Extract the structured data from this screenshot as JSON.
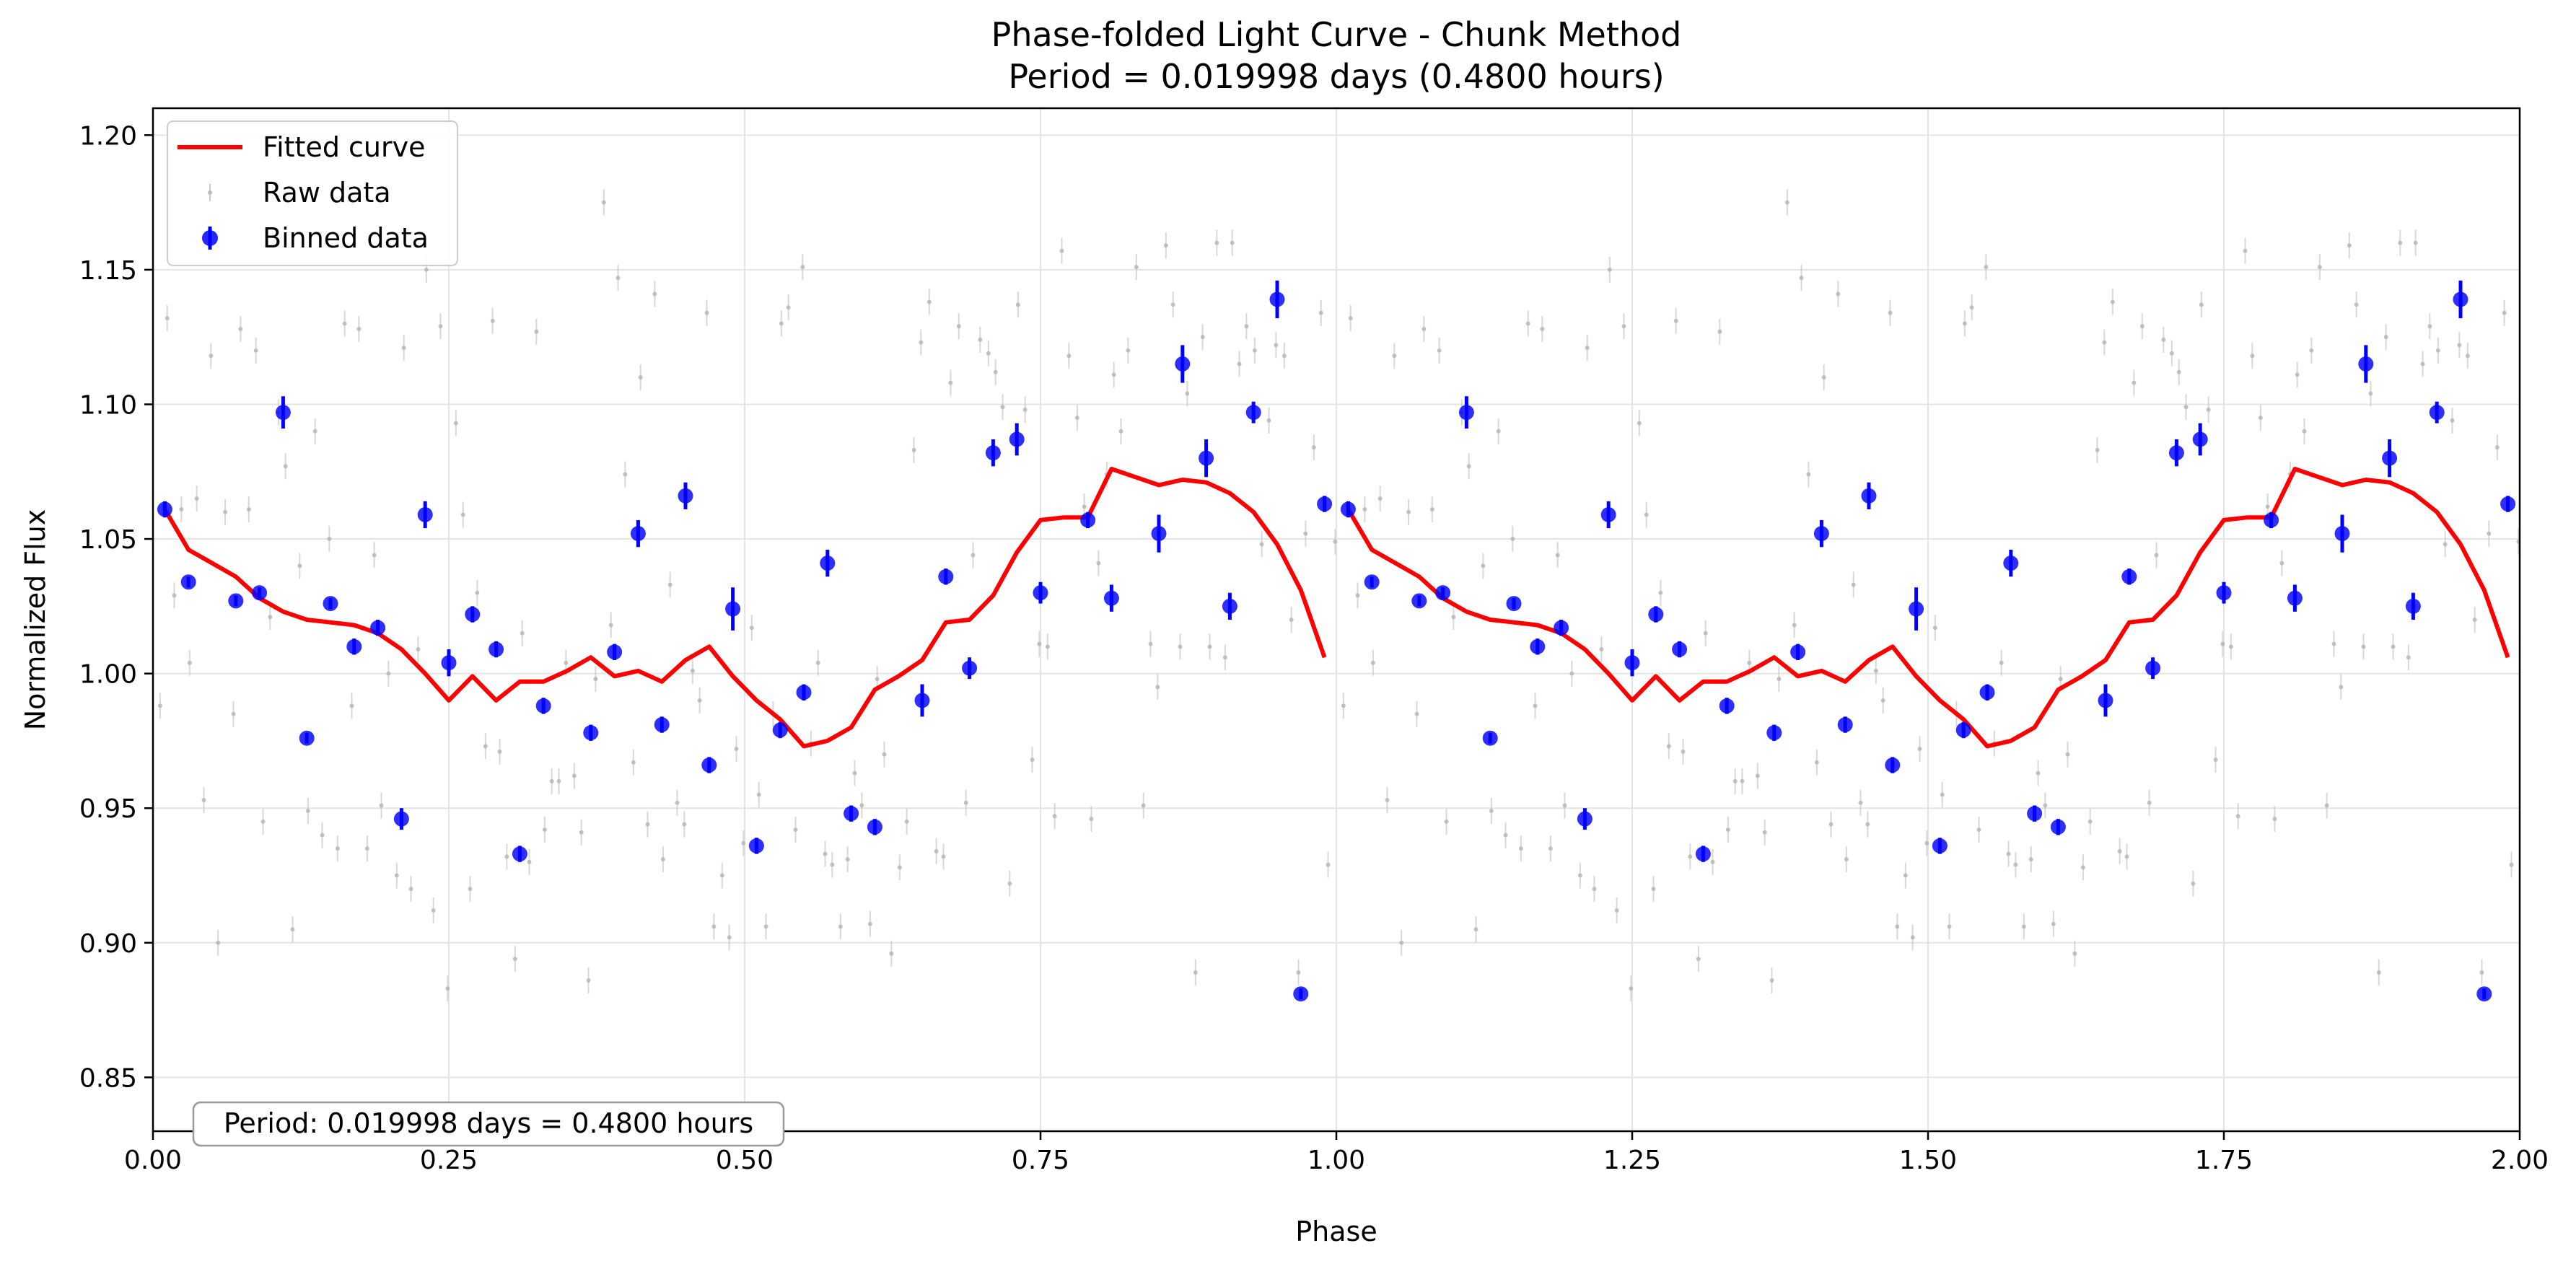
{
  "chart_data": {
    "type": "scatter",
    "title_line1": "Phase-folded Light Curve - Chunk Method",
    "title_line2": "Period = 0.019998 days (0.4800 hours)",
    "xlabel": "Phase",
    "ylabel": "Normalized Flux",
    "xlim": [
      0.0,
      2.0
    ],
    "ylim": [
      0.83,
      1.21
    ],
    "x_ticks": [
      0.0,
      0.25,
      0.5,
      0.75,
      1.0,
      1.25,
      1.5,
      1.75,
      2.0
    ],
    "x_tick_labels": [
      "0.00",
      "0.25",
      "0.50",
      "0.75",
      "1.00",
      "1.25",
      "1.50",
      "1.75",
      "2.00"
    ],
    "y_ticks": [
      0.85,
      0.9,
      0.95,
      1.0,
      1.05,
      1.1,
      1.15,
      1.2
    ],
    "y_tick_labels": [
      "0.85",
      "0.90",
      "0.95",
      "1.00",
      "1.05",
      "1.10",
      "1.15",
      "1.20"
    ],
    "grid": true,
    "legend_position": "top-left",
    "legend": [
      "Fitted curve",
      "Raw data",
      "Binned data"
    ],
    "annotation": "Period: 0.019998 days = 0.4800 hours",
    "colors": {
      "fit": "#ff0000",
      "binned": "#0000ff",
      "raw": "#c8c8c8"
    },
    "fitted_curve": {
      "name": "Fitted curve",
      "phase": [
        0.01,
        0.03,
        0.05,
        0.07,
        0.09,
        0.11,
        0.13,
        0.15,
        0.17,
        0.19,
        0.21,
        0.23,
        0.25,
        0.27,
        0.29,
        0.31,
        0.33,
        0.35,
        0.37,
        0.39,
        0.41,
        0.43,
        0.45,
        0.47,
        0.49,
        0.51,
        0.53,
        0.55,
        0.57,
        0.59,
        0.61,
        0.63,
        0.65,
        0.67,
        0.69,
        0.71,
        0.73,
        0.75,
        0.77,
        0.79,
        0.81,
        0.83,
        0.85,
        0.87,
        0.89,
        0.91,
        0.93,
        0.95,
        0.97,
        0.99
      ],
      "flux": [
        1.061,
        1.046,
        1.041,
        1.036,
        1.028,
        1.023,
        1.02,
        1.019,
        1.018,
        1.015,
        1.009,
        1.0,
        0.99,
        0.999,
        0.99,
        0.997,
        0.997,
        1.001,
        1.006,
        0.999,
        1.001,
        0.997,
        1.005,
        1.01,
        0.999,
        0.99,
        0.983,
        0.973,
        0.975,
        0.98,
        0.994,
        0.999,
        1.005,
        1.019,
        1.02,
        1.029,
        1.045,
        1.057,
        1.058,
        1.058,
        1.076,
        1.073,
        1.07,
        1.072,
        1.071,
        1.067,
        1.06,
        1.048,
        1.031,
        1.006
      ]
    },
    "binned_data": {
      "name": "Binned data",
      "phase": [
        0.01,
        0.03,
        0.07,
        0.09,
        0.11,
        0.13,
        0.15,
        0.17,
        0.19,
        0.21,
        0.23,
        0.25,
        0.27,
        0.29,
        0.31,
        0.33,
        0.37,
        0.39,
        0.41,
        0.43,
        0.45,
        0.47,
        0.49,
        0.51,
        0.53,
        0.55,
        0.57,
        0.59,
        0.61,
        0.65,
        0.67,
        0.69,
        0.71,
        0.73,
        0.75,
        0.79,
        0.81,
        0.85,
        0.87,
        0.89,
        0.91,
        0.93,
        0.95,
        0.97,
        0.99
      ],
      "flux": [
        1.061,
        1.034,
        1.027,
        1.03,
        1.097,
        0.976,
        1.026,
        1.01,
        1.017,
        0.946,
        1.059,
        1.004,
        1.022,
        1.009,
        0.933,
        0.988,
        0.978,
        1.008,
        1.052,
        0.981,
        1.066,
        0.966,
        1.024,
        0.936,
        0.979,
        0.993,
        1.041,
        0.948,
        0.943,
        0.99,
        1.036,
        1.002,
        1.082,
        1.087,
        1.03,
        1.057,
        1.028,
        1.052,
        1.115,
        1.08,
        1.025,
        1.097,
        1.139,
        0.881,
        1.063
      ],
      "error": [
        0.003,
        0.002,
        0.002,
        0.002,
        0.006,
        0.002,
        0.002,
        0.003,
        0.003,
        0.004,
        0.005,
        0.005,
        0.003,
        0.003,
        0.003,
        0.003,
        0.003,
        0.003,
        0.005,
        0.003,
        0.005,
        0.003,
        0.008,
        0.003,
        0.003,
        0.003,
        0.005,
        0.003,
        0.003,
        0.006,
        0.003,
        0.004,
        0.005,
        0.006,
        0.004,
        0.003,
        0.005,
        0.007,
        0.007,
        0.007,
        0.005,
        0.004,
        0.007,
        0.002,
        0.003
      ]
    },
    "raw_data": {
      "name": "Raw data",
      "phase": [
        0.006,
        0.012,
        0.018,
        0.024,
        0.031,
        0.037,
        0.043,
        0.049,
        0.055,
        0.061,
        0.068,
        0.074,
        0.081,
        0.087,
        0.093,
        0.099,
        0.106,
        0.112,
        0.118,
        0.124,
        0.131,
        0.137,
        0.143,
        0.149,
        0.156,
        0.162,
        0.168,
        0.174,
        0.181,
        0.187,
        0.193,
        0.199,
        0.206,
        0.212,
        0.218,
        0.224,
        0.231,
        0.237,
        0.243,
        0.249,
        0.256,
        0.262,
        0.268,
        0.274,
        0.281,
        0.287,
        0.293,
        0.299,
        0.306,
        0.312,
        0.318,
        0.324,
        0.331,
        0.337,
        0.343,
        0.349,
        0.356,
        0.362,
        0.368,
        0.374,
        0.381,
        0.387,
        0.393,
        0.399,
        0.406,
        0.412,
        0.418,
        0.424,
        0.431,
        0.437,
        0.443,
        0.449,
        0.456,
        0.462,
        0.468,
        0.474,
        0.481,
        0.487,
        0.493,
        0.499,
        0.506,
        0.512,
        0.518,
        0.524,
        0.531,
        0.537,
        0.543,
        0.549,
        0.556,
        0.562,
        0.568,
        0.574,
        0.581,
        0.587,
        0.593,
        0.599,
        0.606,
        0.612,
        0.618,
        0.624,
        0.631,
        0.637,
        0.643,
        0.649,
        0.656,
        0.662,
        0.668,
        0.674,
        0.681,
        0.687,
        0.693,
        0.699,
        0.706,
        0.712,
        0.718,
        0.724,
        0.731,
        0.737,
        0.743,
        0.749,
        0.756,
        0.762,
        0.768,
        0.774,
        0.781,
        0.787,
        0.793,
        0.799,
        0.806,
        0.812,
        0.818,
        0.824,
        0.831,
        0.837,
        0.843,
        0.849,
        0.856,
        0.862,
        0.868,
        0.874,
        0.881,
        0.887,
        0.893,
        0.899,
        0.906,
        0.912,
        0.918,
        0.924,
        0.931,
        0.937,
        0.943,
        0.949,
        0.956,
        0.962,
        0.968,
        0.974,
        0.981,
        0.987,
        0.993,
        0.999
      ],
      "flux": [
        0.988,
        1.132,
        1.029,
        1.061,
        1.004,
        1.065,
        0.953,
        1.118,
        0.9,
        1.06,
        0.985,
        1.128,
        1.061,
        1.12,
        0.945,
        1.021,
        1.097,
        1.077,
        0.905,
        1.04,
        0.949,
        1.09,
        0.94,
        1.05,
        0.935,
        1.13,
        0.988,
        1.128,
        0.935,
        1.044,
        0.951,
        1.0,
        0.925,
        1.121,
        0.92,
        1.009,
        1.15,
        0.912,
        1.129,
        0.883,
        1.093,
        1.059,
        0.92,
        1.03,
        0.973,
        1.131,
        0.971,
        0.932,
        0.894,
        1.015,
        0.93,
        1.127,
        0.942,
        0.96,
        0.96,
        1.004,
        0.962,
        0.941,
        0.886,
        0.998,
        1.175,
        1.018,
        1.147,
        1.074,
        0.967,
        1.11,
        0.944,
        1.141,
        0.931,
        1.033,
        0.952,
        0.944,
        1.001,
        0.99,
        1.134,
        0.906,
        0.925,
        0.902,
        0.972,
        0.937,
        1.017,
        0.955,
        0.906,
        0.985,
        1.13,
        1.136,
        0.942,
        1.151,
        0.974,
        1.004,
        0.933,
        0.929,
        0.906,
        0.931,
        0.963,
        0.951,
        0.907,
        0.998,
        0.97,
        0.896,
        0.928,
        0.945,
        1.083,
        1.123,
        1.138,
        0.934,
        0.932,
        1.108,
        1.129,
        0.952,
        1.044,
        1.124,
        1.119,
        1.112,
        1.099,
        0.922,
        1.137,
        1.098,
        0.968,
        1.011,
        1.01,
        0.947,
        1.157,
        1.118,
        1.095,
        1.062,
        0.946,
        1.041,
        1.074,
        1.111,
        1.09,
        1.12,
        1.151,
        0.951,
        1.011,
        0.995,
        1.159,
        1.137,
        1.01,
        1.104,
        0.889,
        1.125,
        1.01,
        1.16,
        1.006,
        1.16,
        1.115,
        1.129,
        1.12,
        1.048,
        1.094,
        1.122,
        1.118,
        1.02,
        0.889,
        1.052,
        1.084,
        1.134,
        0.929,
        1.049
      ]
    }
  }
}
